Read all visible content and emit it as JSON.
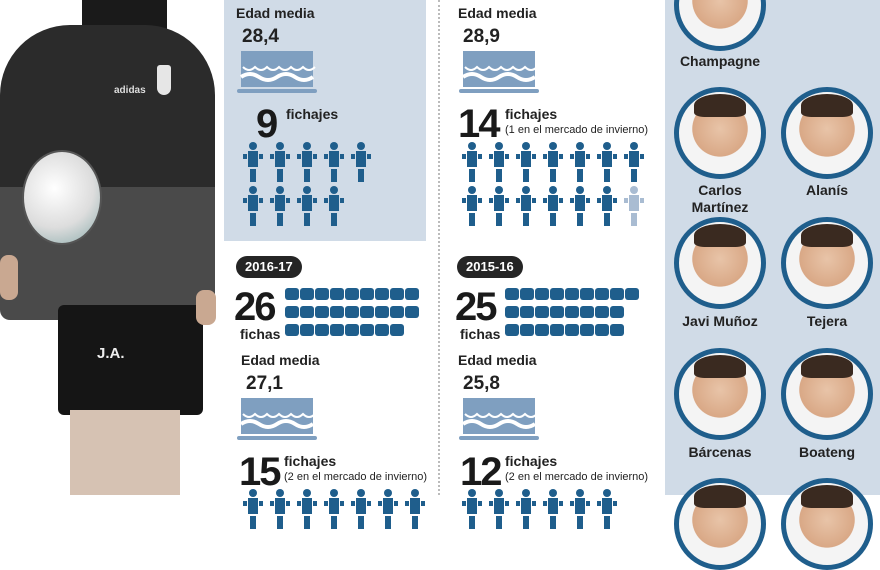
{
  "colors": {
    "accent": "#1f5e8c",
    "light_figure": "#a9bcd2",
    "panel": "#d0dbe7",
    "cake": "#7f9fc0"
  },
  "panels": [
    {
      "age_label": "Edad media",
      "age": "28,4",
      "signings": "9",
      "signings_label": "fichajes",
      "signings_note": "",
      "signings_full": 9,
      "signings_winter": 0
    },
    {
      "age_label": "Edad media",
      "age": "28,9",
      "signings": "14",
      "signings_label": "fichajes",
      "signings_note": "(1 en el mercado de invierno)",
      "signings_full": 13,
      "signings_winter": 1
    },
    {
      "season": "2016-17",
      "cards": "26",
      "cards_label": "fichas",
      "card_rows": [
        9,
        9,
        8
      ],
      "age_label": "Edad media",
      "age": "27,1",
      "signings": "15",
      "signings_label": "fichajes",
      "signings_note": "(2 en el mercado de invierno)"
    },
    {
      "season": "2015-16",
      "cards": "25",
      "cards_label": "fichas",
      "card_rows": [
        9,
        8,
        8
      ],
      "age_label": "Edad media",
      "age": "25,8",
      "signings": "12",
      "signings_label": "fichajes",
      "signings_note": "(2 en el mercado de invierno)"
    }
  ],
  "coach": {
    "initials": "J.A.",
    "brand": "adidas"
  },
  "players": [
    {
      "name": "Champagne"
    },
    {
      "name": "Carlos Martínez"
    },
    {
      "name": "Alanís"
    },
    {
      "name": "Javi Muñoz"
    },
    {
      "name": "Tejera"
    },
    {
      "name": "Bárcenas"
    },
    {
      "name": "Boateng"
    }
  ]
}
